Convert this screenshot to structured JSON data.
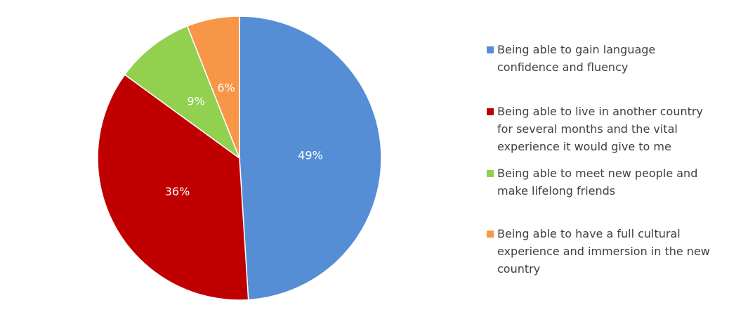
{
  "chart_data": {
    "type": "pie",
    "categories": [
      "Being able to gain language confidence and fluency",
      "Being able to live in another country for several months and the vital experience it would give to me",
      "Being able to meet new people and make lifelong friends",
      "Being able to have a full cultural experience and immersion in the new country"
    ],
    "values": [
      49,
      36,
      9,
      6
    ],
    "value_labels": [
      "49%",
      "36%",
      "9%",
      "6%"
    ],
    "colors": [
      "#558ed5",
      "#c00000",
      "#92d050",
      "#f79646"
    ],
    "legend": "right"
  }
}
